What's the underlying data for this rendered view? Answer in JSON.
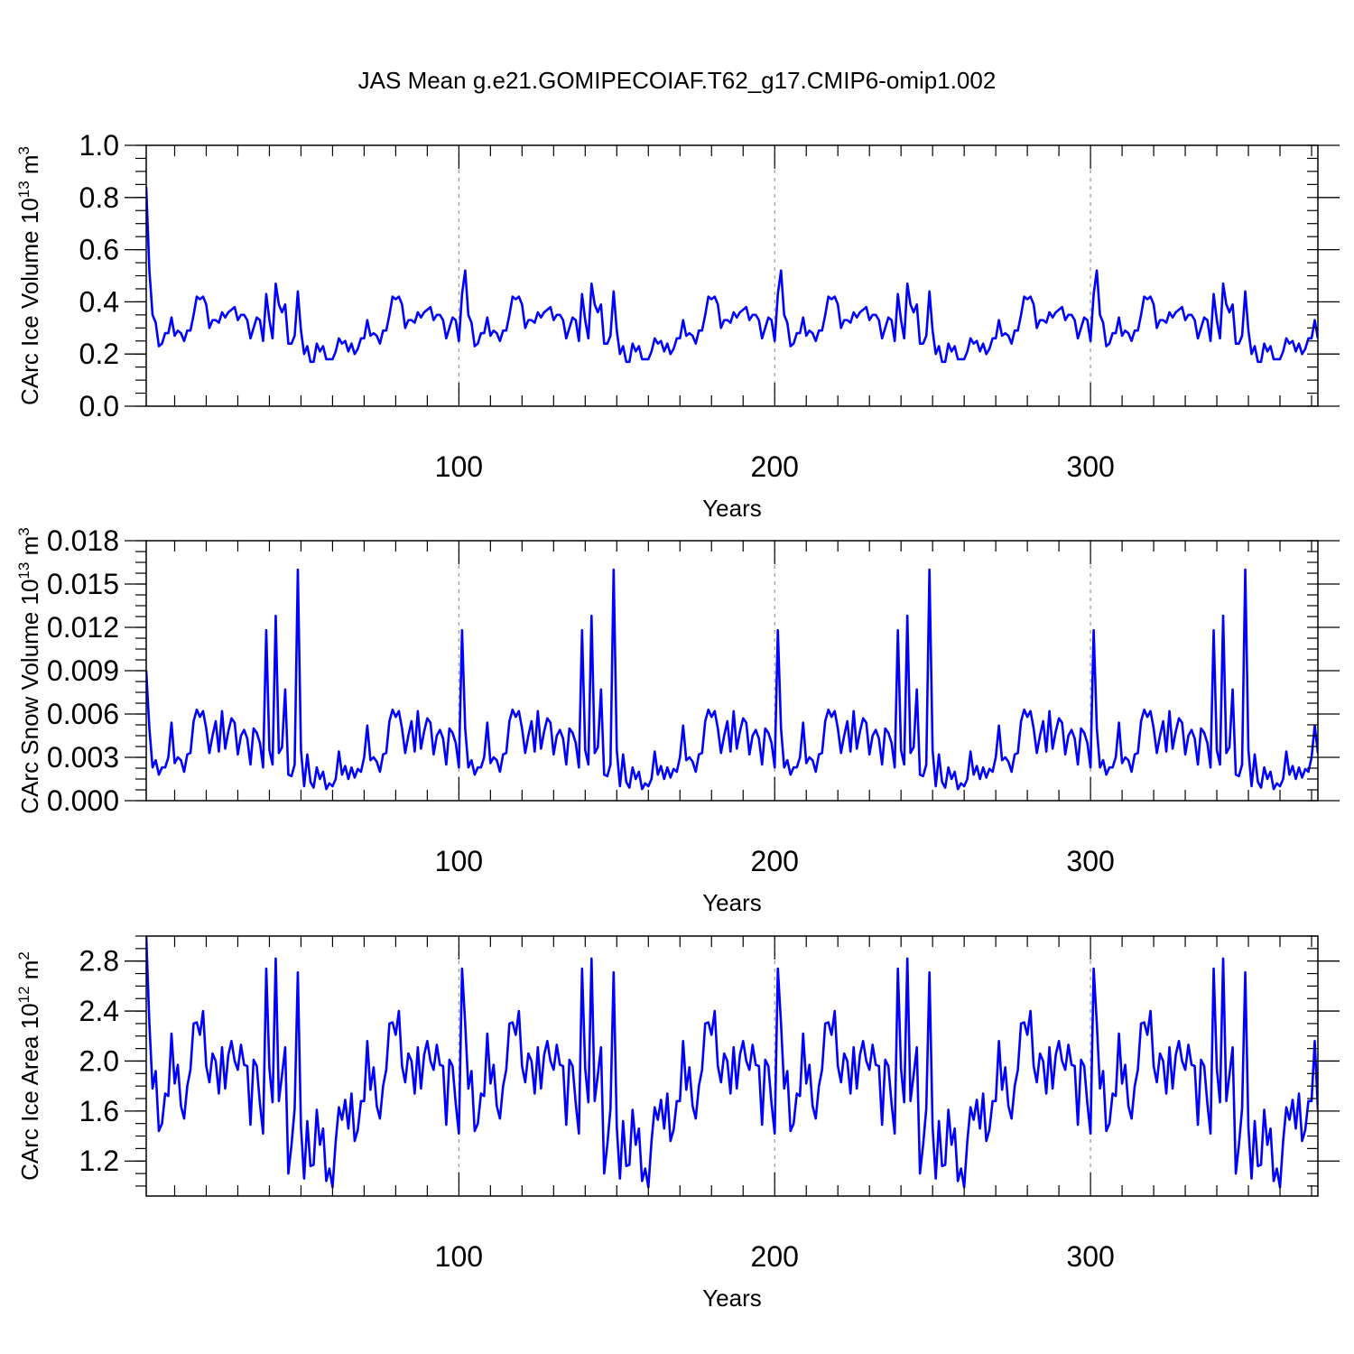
{
  "title": "JAS Mean g.e21.GOMIPECOIAF.T62_g17.CMIP6-omip1.002",
  "series_color": "#0000ff",
  "chart_data": [
    {
      "type": "line",
      "title": "JAS Mean g.e21.GOMIPECOIAF.T62_g17.CMIP6-omip1.002",
      "xlabel": "Years",
      "ylabel_main": "CArc Ice Volume 10",
      "ylabel_exp": "13",
      "ylabel_unit": " m",
      "ylabel_unit_exp": "3",
      "xlim": [
        1,
        372
      ],
      "ylim": [
        0,
        1.0
      ],
      "x_ticks": [
        100,
        200,
        300
      ],
      "y_ticks": [
        0.0,
        0.2,
        0.4,
        0.6,
        0.8,
        1.0
      ],
      "y_tick_labels": [
        "0.0",
        "0.2",
        "0.4",
        "0.6",
        "0.8",
        "1.0"
      ],
      "grid_x": [
        100,
        200,
        300
      ],
      "base_cycle": [
        0.84,
        0.52,
        0.35,
        0.32,
        0.23,
        0.24,
        0.28,
        0.28,
        0.34,
        0.27,
        0.29,
        0.28,
        0.25,
        0.29,
        0.29,
        0.35,
        0.42,
        0.41,
        0.42,
        0.39,
        0.3,
        0.33,
        0.33,
        0.32,
        0.36,
        0.34,
        0.36,
        0.37,
        0.38,
        0.33,
        0.35,
        0.35,
        0.33,
        0.26,
        0.3,
        0.34,
        0.33,
        0.25,
        0.43,
        0.33,
        0.26,
        0.47,
        0.39,
        0.36,
        0.39,
        0.24,
        0.24,
        0.27,
        0.44,
        0.29,
        0.2,
        0.23,
        0.17,
        0.17,
        0.24,
        0.21,
        0.23,
        0.18,
        0.18,
        0.18,
        0.21,
        0.26,
        0.24,
        0.25,
        0.21,
        0.24,
        0.2,
        0.22,
        0.26,
        0.26,
        0.33,
        0.27,
        0.28,
        0.27,
        0.24,
        0.29,
        0.29,
        0.35,
        0.42,
        0.41,
        0.42,
        0.39,
        0.3,
        0.33,
        0.33,
        0.32,
        0.36,
        0.34,
        0.36,
        0.37,
        0.38,
        0.33,
        0.35,
        0.35,
        0.33,
        0.26,
        0.3,
        0.34,
        0.33,
        0.25,
        0.43
      ],
      "tail": [
        0.26
      ]
    },
    {
      "type": "line",
      "xlabel": "Years",
      "ylabel_main": "CArc Snow Volume 10",
      "ylabel_exp": "13",
      "ylabel_unit": " m",
      "ylabel_unit_exp": "3",
      "xlim": [
        1,
        372
      ],
      "ylim": [
        0,
        0.018
      ],
      "x_ticks": [
        100,
        200,
        300
      ],
      "y_ticks": [
        0.0,
        0.003,
        0.006,
        0.009,
        0.012,
        0.015,
        0.018
      ],
      "y_tick_labels": [
        "0.000",
        "0.003",
        "0.006",
        "0.009",
        "0.012",
        "0.015",
        "0.018"
      ],
      "grid_x": [
        100,
        200,
        300
      ],
      "base_cycle": [
        0.009,
        0.005,
        0.0023,
        0.0028,
        0.0018,
        0.0023,
        0.0023,
        0.003,
        0.0054,
        0.0026,
        0.003,
        0.0028,
        0.002,
        0.0032,
        0.0033,
        0.0055,
        0.0063,
        0.0058,
        0.0062,
        0.005,
        0.0033,
        0.0045,
        0.0055,
        0.0034,
        0.0062,
        0.0036,
        0.0048,
        0.0057,
        0.0054,
        0.0032,
        0.0045,
        0.0049,
        0.0043,
        0.0025,
        0.005,
        0.0047,
        0.004,
        0.0023,
        0.0118,
        0.0035,
        0.0025,
        0.0128,
        0.0033,
        0.0037,
        0.0077,
        0.0018,
        0.0017,
        0.0025,
        0.016,
        0.0035,
        0.001,
        0.0032,
        0.0013,
        0.0009,
        0.0023,
        0.0015,
        0.002,
        0.0008,
        0.0012,
        0.001,
        0.0015,
        0.0034,
        0.0018,
        0.0024,
        0.0015,
        0.0023,
        0.0016,
        0.0022,
        0.002,
        0.003,
        0.0052,
        0.0028,
        0.003,
        0.0027,
        0.002,
        0.0032,
        0.0033,
        0.0055,
        0.0063,
        0.0058,
        0.0062,
        0.005,
        0.0033,
        0.0045,
        0.0055,
        0.0034,
        0.0062,
        0.0036,
        0.0048,
        0.0057,
        0.0054,
        0.0032,
        0.0045,
        0.0049,
        0.0043,
        0.0025,
        0.005,
        0.0047,
        0.004,
        0.0023,
        0.0118
      ],
      "tail": [
        0.0033
      ]
    },
    {
      "type": "line",
      "xlabel": "Years",
      "ylabel_main": "CArc Ice Area 10",
      "ylabel_exp": "12",
      "ylabel_unit": " m",
      "ylabel_unit_exp": "2",
      "xlim": [
        1,
        372
      ],
      "ylim": [
        0.92,
        3.0
      ],
      "x_ticks": [
        100,
        200,
        300
      ],
      "y_ticks": [
        1.2,
        1.6,
        2.0,
        2.4,
        2.8
      ],
      "y_tick_labels": [
        "1.2",
        "1.6",
        "2.0",
        "2.4",
        "2.8"
      ],
      "grid_x": [
        100,
        200,
        300
      ],
      "base_cycle": [
        3.0,
        2.3,
        1.78,
        1.92,
        1.44,
        1.5,
        1.74,
        1.72,
        2.22,
        1.82,
        1.97,
        1.64,
        1.54,
        1.8,
        1.93,
        2.3,
        2.31,
        2.21,
        2.4,
        1.96,
        1.83,
        2.06,
        2.0,
        1.74,
        2.11,
        1.78,
        2.05,
        2.16,
        2.0,
        1.93,
        2.13,
        1.97,
        1.96,
        1.49,
        2.01,
        1.96,
        1.66,
        1.42,
        2.74,
        1.94,
        1.67,
        2.82,
        1.68,
        1.89,
        2.11,
        1.1,
        1.33,
        1.62,
        2.71,
        1.47,
        1.06,
        1.52,
        1.16,
        1.17,
        1.61,
        1.33,
        1.46,
        1.04,
        1.14,
        0.99,
        1.36,
        1.63,
        1.53,
        1.69,
        1.46,
        1.74,
        1.36,
        1.45,
        1.68,
        1.68,
        2.16,
        1.77,
        1.95,
        1.64,
        1.54,
        1.8,
        1.93,
        2.3,
        2.31,
        2.21,
        2.4,
        1.96,
        1.83,
        2.06,
        2.0,
        1.74,
        2.11,
        1.78,
        2.05,
        2.16,
        2.0,
        1.93,
        2.13,
        1.97,
        1.96,
        1.49,
        2.01,
        1.96,
        1.66,
        1.42,
        2.74
      ],
      "tail": [
        1.61
      ]
    }
  ]
}
